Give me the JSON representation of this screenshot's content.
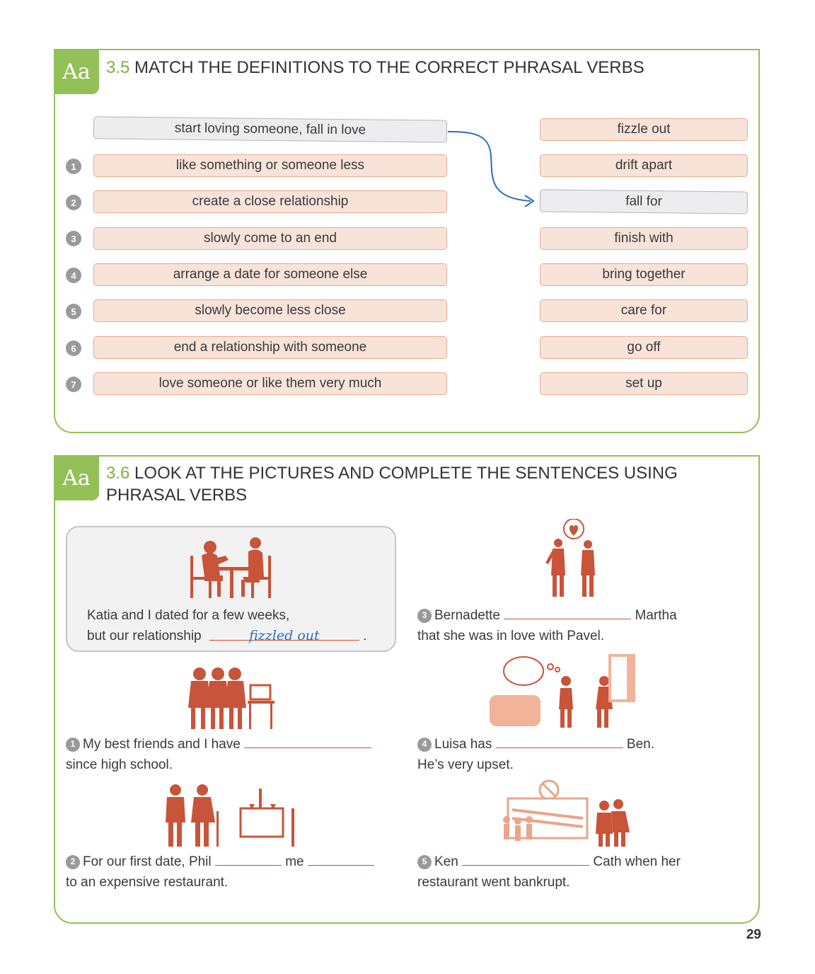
{
  "ex35": {
    "aa": "Aa",
    "num": "3.5",
    "title": "MATCH THE DEFINITIONS TO THE CORRECT PHRASAL VERBS",
    "example_definition": "start loving someone, fall in love",
    "definitions": [
      {
        "n": "1",
        "text": "like something or someone less"
      },
      {
        "n": "2",
        "text": "create a close relationship"
      },
      {
        "n": "3",
        "text": "slowly come to an end"
      },
      {
        "n": "4",
        "text": "arrange a date for someone else"
      },
      {
        "n": "5",
        "text": "slowly become less close"
      },
      {
        "n": "6",
        "text": "end a relationship with someone"
      },
      {
        "n": "7",
        "text": "love someone or like them very much"
      }
    ],
    "verbs": [
      "fizzle out",
      "drift apart",
      "fall for",
      "finish with",
      "bring together",
      "care for",
      "go off",
      "set up"
    ]
  },
  "ex36": {
    "aa": "Aa",
    "num": "3.6",
    "title_line1": "LOOK AT THE PICTURES AND COMPLETE THE SENTENCES USING",
    "title_line2": "PHRASAL VERBS",
    "example": {
      "line1": "Katia and I dated for a few weeks,",
      "line2a": "but our relationship",
      "answer": "fizzled out",
      "line2b": "."
    },
    "s1": {
      "n": "1",
      "a": "My best friends and I have",
      "b": "since high school."
    },
    "s2": {
      "n": "2",
      "a": "For our first date, Phil",
      "mid": "me",
      "b": "to an expensive restaurant."
    },
    "s3": {
      "n": "3",
      "a": "Bernadette",
      "c": "Martha",
      "b": "that she was in love with Pavel."
    },
    "s4": {
      "n": "4",
      "a": "Luisa has",
      "c": "Ben.",
      "b": "He’s very upset."
    },
    "s5": {
      "n": "5",
      "a": "Ken",
      "c": "Cath when her",
      "b": "restaurant went bankrupt."
    }
  },
  "page_number": "29",
  "colors": {
    "green": "#93c057",
    "salmon": "#f8e3d9",
    "illustration": "#c8543a",
    "arrow": "#2d6db5"
  }
}
